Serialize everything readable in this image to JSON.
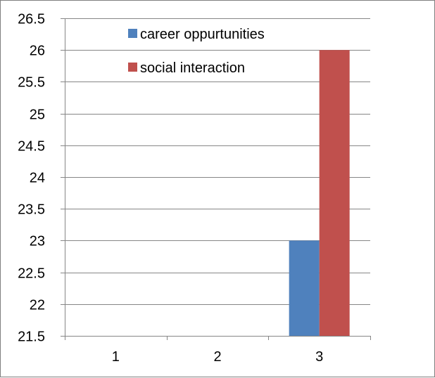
{
  "chart_data": {
    "type": "bar",
    "categories": [
      "1",
      "2",
      "3"
    ],
    "series": [
      {
        "name": "career oppurtunities",
        "values": [
          null,
          null,
          23
        ],
        "color": "#4f81bd"
      },
      {
        "name": "social interaction",
        "values": [
          null,
          null,
          26
        ],
        "color": "#c0504d"
      }
    ],
    "y_ticks": [
      "21.5",
      "22",
      "22.5",
      "23",
      "23.5",
      "24",
      "24.5",
      "25",
      "25.5",
      "26",
      "26.5"
    ],
    "ylim": [
      21.5,
      26.5
    ],
    "grid": true,
    "legend_position": "top-center",
    "title": "",
    "xlabel": "",
    "ylabel": ""
  }
}
